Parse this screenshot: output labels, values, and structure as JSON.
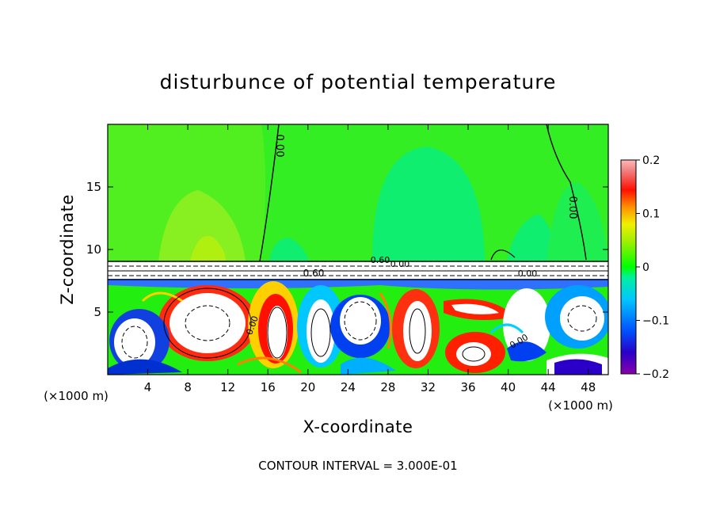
{
  "chart_data": {
    "type": "heatmap",
    "title": "disturbunce of potential temperature",
    "xlabel": "X-coordinate",
    "ylabel": "Z-coordinate",
    "x_unit_left": "(×1000 m)",
    "x_unit_right": "(×1000 m)",
    "xlim": [
      0,
      50
    ],
    "ylim": [
      0,
      20
    ],
    "x_ticks": [
      4,
      8,
      12,
      16,
      20,
      24,
      28,
      32,
      36,
      40,
      44,
      48
    ],
    "y_ticks": [
      5,
      10,
      15
    ],
    "colorbar": {
      "range": [
        -0.2,
        0.2
      ],
      "tick_values": [
        0.2,
        0.1,
        0,
        -0.1,
        -0.2
      ],
      "tick_labels": [
        "0.2",
        "0.1",
        "0",
        "−0.1",
        "−0.2"
      ],
      "colors": [
        "#8800aa",
        "#2a00c8",
        "#0030f0",
        "#0070ff",
        "#00a8ff",
        "#00e0f0",
        "#00f0a0",
        "#00ff00",
        "#20f000",
        "#a0f000",
        "#e0f000",
        "#ffc000",
        "#ff8000",
        "#ff2000",
        "#f00000",
        "#f08080",
        "#ffb0b0"
      ]
    },
    "contour_labels": [
      "0.00",
      "0.00",
      "0.60",
      "0.60",
      "0.00",
      "0.00",
      "0.00",
      "0.00"
    ],
    "footer": "CONTOUR INTERVAL = 3.000E-01"
  }
}
